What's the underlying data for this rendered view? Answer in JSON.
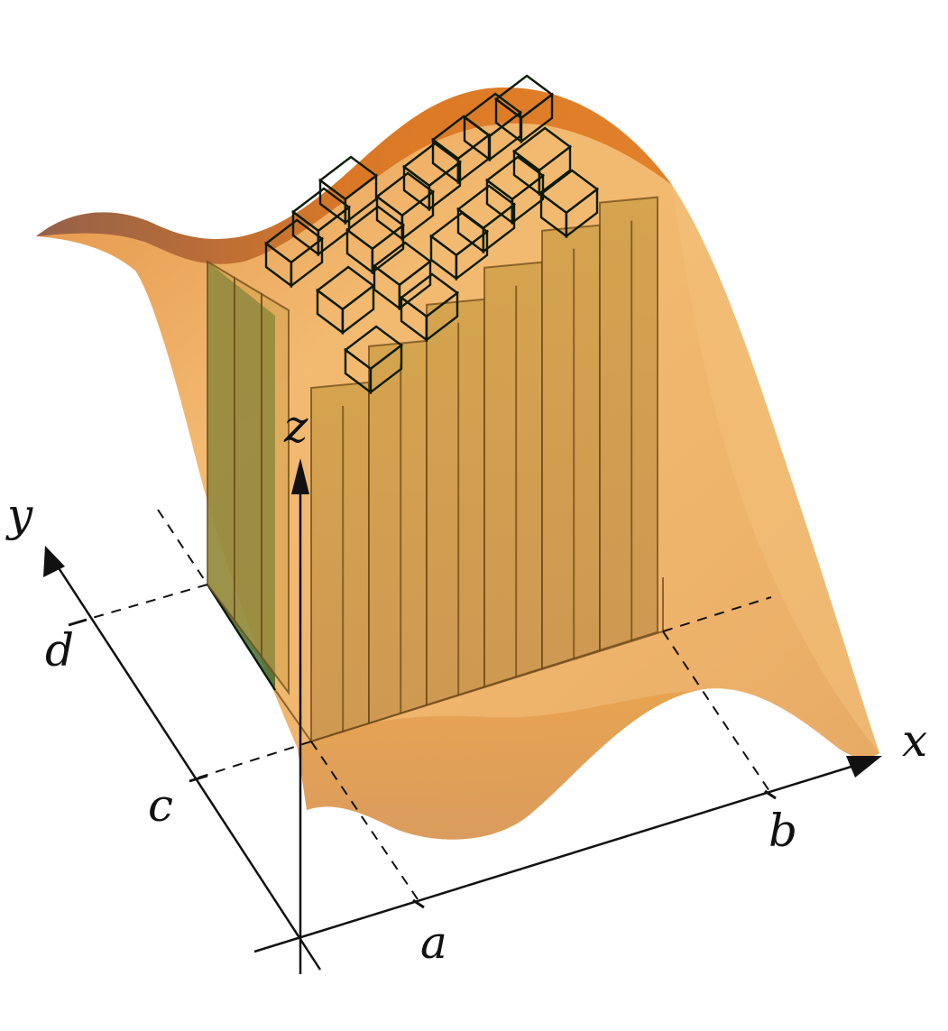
{
  "axes": {
    "x_label": "x",
    "y_label": "y",
    "z_label": "z"
  },
  "ticks": {
    "a": "a",
    "b": "b",
    "c": "c",
    "d": "d"
  },
  "colors": {
    "surface_light": "#f0b566",
    "surface_mid": "#e9a24c",
    "surface_dark": "#c8681f",
    "surface_ridge": "#8a5a3a",
    "box_green_top": "#6fa63a",
    "box_green_dark": "#2f5a24",
    "box_face": "#c79a3e",
    "axis_color": "#111111"
  }
}
